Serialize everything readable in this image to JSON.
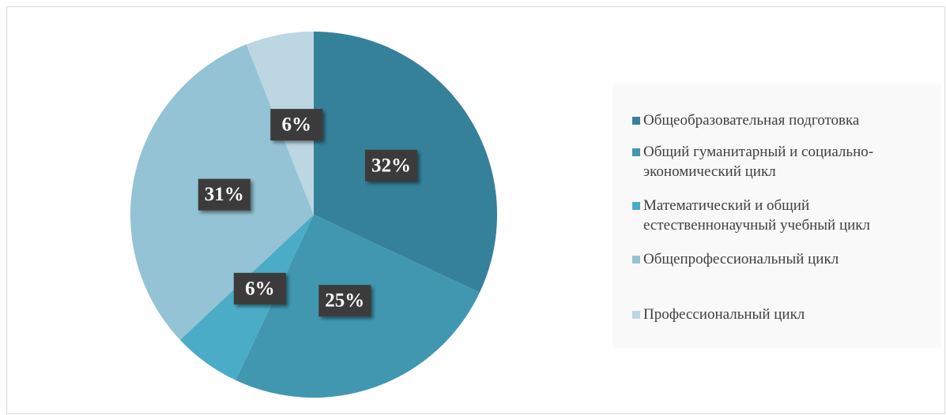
{
  "chart_data": {
    "type": "pie",
    "categories": [
      "Общеобразовательная подготовка",
      "Общий гуманитарный и социально-экономический цикл",
      "Математический и общий естественнонаучный учебный цикл",
      "Общепрофессиональный цикл",
      "Профессиональный цикл"
    ],
    "values": [
      32,
      25,
      6,
      31,
      6
    ],
    "value_labels": [
      "32%",
      "25%",
      "6%",
      "31%",
      "6%"
    ],
    "colors": [
      "#36819a",
      "#4197b0",
      "#4aacc6",
      "#93c3d4",
      "#bcd6e2"
    ],
    "legend": "right"
  }
}
